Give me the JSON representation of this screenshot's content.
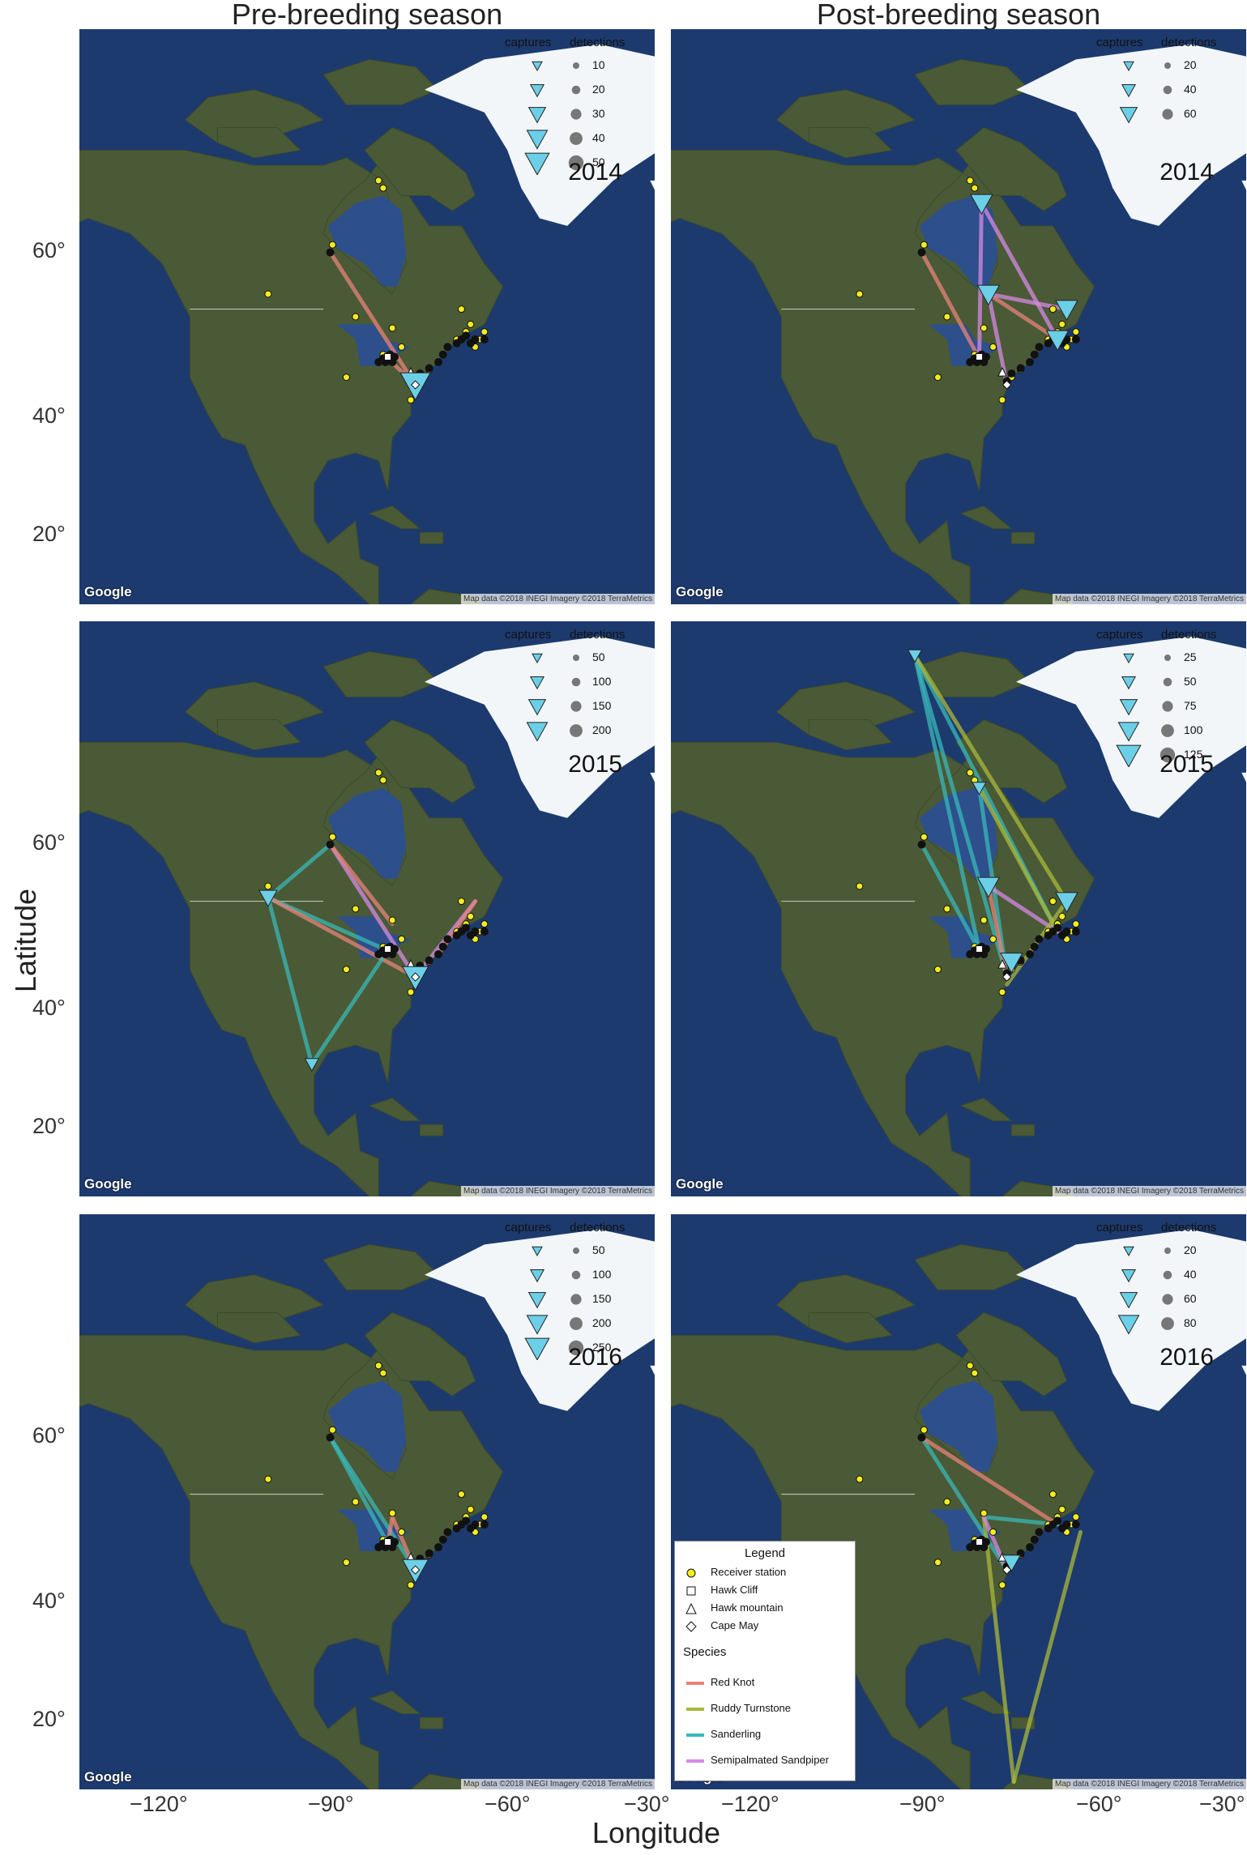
{
  "figure": {
    "column_titles": [
      "Pre-breeding season",
      "Post-breeding season"
    ],
    "x_axis_title": "Longitude",
    "y_axis_title": "Latitude",
    "x_ticks": [
      "−120°",
      "−90°",
      "−60°",
      "−30°"
    ],
    "y_ticks": [
      "60°",
      "40°",
      "20°"
    ],
    "colors": {
      "ocean": "#1d3a6e",
      "land": "#4a5a36",
      "ice": "#f2f6f8",
      "receiver": "#f5ec1f",
      "detection": "#111111",
      "capture": "#6ccfe8",
      "red_knot": "#e8837b",
      "ruddy_turnstone": "#a9b83a",
      "sanderling": "#38b8b8",
      "semipalmated_sandpiper": "#d58ae6"
    }
  },
  "panels": [
    {
      "id": "pre-2014",
      "season": "Pre-breeding season",
      "year": "2014",
      "legend_captures_label": "captures",
      "legend_detections_label": "detections",
      "legend_values": [
        "10",
        "20",
        "30",
        "40",
        "50"
      ],
      "google_label": "Google",
      "attribution": "Map data ©2018 INEGI  Imagery ©2018 TerraMetrics",
      "flights": [
        {
          "species": "red_knot",
          "from": [
            -93.5,
            56.5
          ],
          "to": [
            -75.0,
            39.0
          ]
        },
        {
          "species": "red_knot",
          "from": [
            -81.0,
            42.5
          ],
          "to": [
            -75.0,
            39.0
          ]
        }
      ],
      "captures": [
        {
          "lon": -75.0,
          "lat": 39.0,
          "size": 5
        }
      ]
    },
    {
      "id": "post-2014",
      "season": "Post-breeding season",
      "year": "2014",
      "legend_captures_label": "captures",
      "legend_detections_label": "detections",
      "legend_values": [
        "20",
        "40",
        "60"
      ],
      "google_label": "Google",
      "attribution": "Map data ©2018 INEGI  Imagery ©2018 TerraMetrics",
      "flights": [
        {
          "species": "red_knot",
          "from": [
            -93.5,
            56.5
          ],
          "to": [
            -81.0,
            42.5
          ]
        },
        {
          "species": "semipalmated_sandpiper",
          "from": [
            -80.5,
            63.0
          ],
          "to": [
            -64.0,
            45.0
          ]
        },
        {
          "species": "semipalmated_sandpiper",
          "from": [
            -80.5,
            63.0
          ],
          "to": [
            -81.0,
            42.5
          ]
        },
        {
          "species": "semipalmated_sandpiper",
          "from": [
            -79.0,
            51.0
          ],
          "to": [
            -62.0,
            49.0
          ]
        },
        {
          "species": "red_knot",
          "from": [
            -79.0,
            51.0
          ],
          "to": [
            -64.0,
            45.0
          ]
        },
        {
          "species": "semipalmated_sandpiper",
          "from": [
            -79.0,
            51.0
          ],
          "to": [
            -75.0,
            39.0
          ]
        }
      ],
      "captures": [
        {
          "lon": -80.5,
          "lat": 63.0,
          "size": 3
        },
        {
          "lon": -79.0,
          "lat": 51.0,
          "size": 3
        },
        {
          "lon": -62.0,
          "lat": 49.0,
          "size": 3
        },
        {
          "lon": -64.0,
          "lat": 45.0,
          "size": 3
        }
      ]
    },
    {
      "id": "pre-2015",
      "season": "Pre-breeding season",
      "year": "2015",
      "legend_captures_label": "captures",
      "legend_detections_label": "detections",
      "legend_values": [
        "50",
        "100",
        "150",
        "200"
      ],
      "google_label": "Google",
      "attribution": "Map data ©2018 INEGI  Imagery ©2018 TerraMetrics",
      "flights": [
        {
          "species": "sanderling",
          "from": [
            -107.0,
            49.5
          ],
          "to": [
            -97.5,
            27.5
          ]
        },
        {
          "species": "sanderling",
          "from": [
            -107.0,
            49.5
          ],
          "to": [
            -81.0,
            42.5
          ]
        },
        {
          "species": "sanderling",
          "from": [
            -107.0,
            49.5
          ],
          "to": [
            -93.5,
            56.5
          ]
        },
        {
          "species": "red_knot",
          "from": [
            -107.0,
            49.5
          ],
          "to": [
            -75.0,
            39.0
          ]
        },
        {
          "species": "sanderling",
          "from": [
            -97.5,
            27.5
          ],
          "to": [
            -81.0,
            42.5
          ]
        },
        {
          "species": "semipalmated_sandpiper",
          "from": [
            -93.5,
            56.5
          ],
          "to": [
            -75.0,
            39.0
          ]
        },
        {
          "species": "red_knot",
          "from": [
            -93.5,
            56.5
          ],
          "to": [
            -80.0,
            46.0
          ]
        },
        {
          "species": "semipalmated_sandpiper",
          "from": [
            -62.0,
            49.0
          ],
          "to": [
            -75.0,
            39.0
          ]
        },
        {
          "species": "red_knot",
          "from": [
            -62.0,
            49.0
          ],
          "to": [
            -70.0,
            42.0
          ]
        }
      ],
      "captures": [
        {
          "lon": -107.0,
          "lat": 49.5,
          "size": 2
        },
        {
          "lon": -97.5,
          "lat": 27.5,
          "size": 1
        },
        {
          "lon": -75.0,
          "lat": 39.0,
          "size": 4
        }
      ]
    },
    {
      "id": "post-2015",
      "season": "Post-breeding season",
      "year": "2015",
      "legend_captures_label": "captures",
      "legend_detections_label": "detections",
      "legend_values": [
        "25",
        "50",
        "75",
        "100",
        "125"
      ],
      "google_label": "Google",
      "attribution": "Map data ©2018 INEGI  Imagery ©2018 TerraMetrics",
      "flights": [
        {
          "species": "sanderling",
          "from": [
            -95.0,
            81.5
          ],
          "to": [
            -81.0,
            42.5
          ]
        },
        {
          "species": "sanderling",
          "from": [
            -95.0,
            81.5
          ],
          "to": [
            -75.0,
            39.0
          ]
        },
        {
          "species": "sanderling",
          "from": [
            -95.0,
            81.5
          ],
          "to": [
            -64.0,
            45.0
          ]
        },
        {
          "species": "ruddy_turnstone",
          "from": [
            -95.0,
            81.5
          ],
          "to": [
            -62.0,
            49.0
          ]
        },
        {
          "species": "sanderling",
          "from": [
            -81.0,
            64.0
          ],
          "to": [
            -75.0,
            39.0
          ]
        },
        {
          "species": "ruddy_turnstone",
          "from": [
            -81.0,
            64.0
          ],
          "to": [
            -64.0,
            45.0
          ]
        },
        {
          "species": "sanderling",
          "from": [
            -93.5,
            56.5
          ],
          "to": [
            -81.0,
            42.5
          ]
        },
        {
          "species": "semipalmated_sandpiper",
          "from": [
            -79.0,
            51.0
          ],
          "to": [
            -64.0,
            45.0
          ]
        },
        {
          "species": "red_knot",
          "from": [
            -79.0,
            51.0
          ],
          "to": [
            -75.0,
            39.0
          ]
        },
        {
          "species": "ruddy_turnstone",
          "from": [
            -62.0,
            49.0
          ],
          "to": [
            -75.0,
            38.0
          ]
        }
      ],
      "captures": [
        {
          "lon": -95.0,
          "lat": 81.5,
          "size": 1
        },
        {
          "lon": -81.0,
          "lat": 64.0,
          "size": 1
        },
        {
          "lon": -79.0,
          "lat": 51.0,
          "size": 3
        },
        {
          "lon": -62.0,
          "lat": 49.0,
          "size": 3
        },
        {
          "lon": -74.0,
          "lat": 41.0,
          "size": 3
        }
      ]
    },
    {
      "id": "pre-2016",
      "season": "Pre-breeding season",
      "year": "2016",
      "legend_captures_label": "captures",
      "legend_detections_label": "detections",
      "legend_values": [
        "50",
        "100",
        "150",
        "200",
        "250"
      ],
      "google_label": "Google",
      "attribution": "Map data ©2018 INEGI  Imagery ©2018 TerraMetrics",
      "flights": [
        {
          "species": "sanderling",
          "from": [
            -93.5,
            56.5
          ],
          "to": [
            -75.0,
            39.0
          ]
        },
        {
          "species": "sanderling",
          "from": [
            -93.5,
            56.5
          ],
          "to": [
            -81.0,
            42.5
          ]
        },
        {
          "species": "red_knot",
          "from": [
            -80.0,
            46.0
          ],
          "to": [
            -75.0,
            39.0
          ]
        },
        {
          "species": "red_knot",
          "from": [
            -80.0,
            46.0
          ],
          "to": [
            -81.0,
            42.5
          ]
        }
      ],
      "captures": [
        {
          "lon": -75.0,
          "lat": 39.0,
          "size": 4
        }
      ]
    },
    {
      "id": "post-2016",
      "season": "Post-breeding season",
      "year": "2016",
      "legend_captures_label": "captures",
      "legend_detections_label": "detections",
      "legend_values": [
        "20",
        "40",
        "60",
        "80"
      ],
      "google_label": "Google",
      "attribution": "Map data ©2018 INEGI  Imagery ©2018 TerraMetrics",
      "flights": [
        {
          "species": "sanderling",
          "from": [
            -93.5,
            56.5
          ],
          "to": [
            -75.0,
            39.0
          ]
        },
        {
          "species": "red_knot",
          "from": [
            -93.5,
            56.5
          ],
          "to": [
            -64.0,
            45.0
          ]
        },
        {
          "species": "sanderling",
          "from": [
            -80.0,
            46.0
          ],
          "to": [
            -64.0,
            45.0
          ]
        },
        {
          "species": "ruddy_turnstone",
          "from": [
            -80.0,
            46.0
          ],
          "to": [
            -73.5,
            11.0
          ]
        },
        {
          "species": "ruddy_turnstone",
          "from": [
            -59.0,
            44.0
          ],
          "to": [
            -73.5,
            11.0
          ]
        },
        {
          "species": "semipalmated_sandpiper",
          "from": [
            -80.0,
            46.0
          ],
          "to": [
            -75.0,
            39.0
          ]
        }
      ],
      "captures": [
        {
          "lon": -74.0,
          "lat": 40.0,
          "size": 2
        }
      ]
    }
  ],
  "species_legend": {
    "title": "Legend",
    "site_items": [
      "Receiver station",
      "Hawk Cliff",
      "Hawk mountain",
      "Cape May"
    ],
    "species_title": "Species",
    "species_items": [
      {
        "label": "Red Knot",
        "color": "#e8837b"
      },
      {
        "label": "Ruddy Turnstone",
        "color": "#a9b83a"
      },
      {
        "label": "Sanderling",
        "color": "#38b8b8"
      },
      {
        "label": "Semipalmated Sandpiper",
        "color": "#d58ae6"
      }
    ]
  }
}
